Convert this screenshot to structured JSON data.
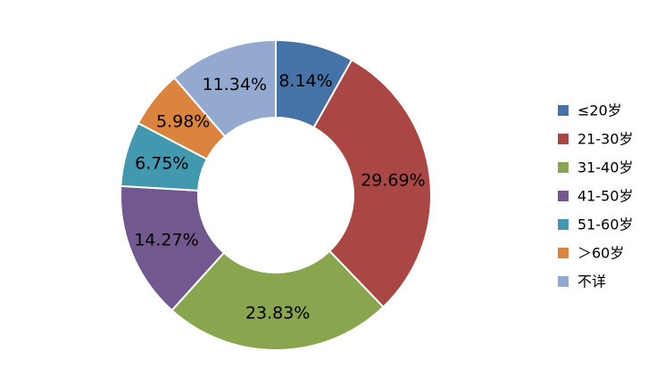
{
  "chart_data": {
    "type": "pie",
    "variant": "donut",
    "title": "",
    "legend_position": "right",
    "slices": [
      {
        "label": "≤20岁",
        "value": 8.14,
        "display": "8.14%",
        "color": "#4572A7"
      },
      {
        "label": "21-30岁",
        "value": 29.69,
        "display": "29.69%",
        "color": "#AA4643"
      },
      {
        "label": "31-40岁",
        "value": 23.83,
        "display": "23.83%",
        "color": "#89A54E"
      },
      {
        "label": "41-50岁",
        "value": 14.27,
        "display": "14.27%",
        "color": "#71588F"
      },
      {
        "label": "51-60岁",
        "value": 6.75,
        "display": "6.75%",
        "color": "#4198AF"
      },
      {
        "label": "＞60岁",
        "value": 5.98,
        "display": "5.98%",
        "color": "#DB843D"
      },
      {
        "label": "不详",
        "value": 11.34,
        "display": "11.34%",
        "color": "#93A9CF"
      }
    ]
  }
}
